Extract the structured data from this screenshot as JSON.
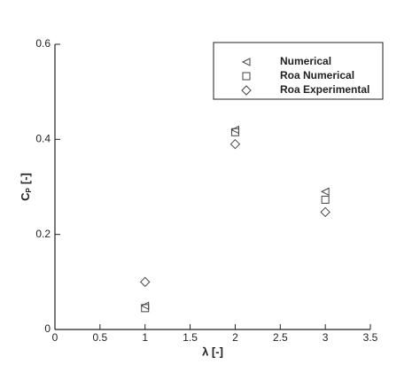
{
  "chart_data": {
    "type": "scatter",
    "x_label": "λ [-]",
    "y_label": {
      "main": "C",
      "sub": "P",
      "unit": "[-]"
    },
    "x": [
      1,
      2,
      3
    ],
    "series": [
      {
        "name": "Numerical",
        "marker": "triangle-left",
        "color": "#444",
        "values": [
          0.05,
          0.42,
          0.29
        ]
      },
      {
        "name": "Roa Numerical",
        "marker": "square",
        "color": "#444",
        "values": [
          0.045,
          0.415,
          0.273
        ]
      },
      {
        "name": "Roa Experimental",
        "marker": "diamond",
        "color": "#444",
        "values": [
          0.1,
          0.39,
          0.247
        ]
      }
    ],
    "xlim": [
      0,
      3.5
    ],
    "xticks": [
      0,
      0.5,
      1,
      1.5,
      2,
      2.5,
      3,
      3.5
    ],
    "ylim": [
      0,
      0.6
    ],
    "yticks": [
      0,
      0.2,
      0.4,
      0.6
    ],
    "legend": "upper-right"
  }
}
